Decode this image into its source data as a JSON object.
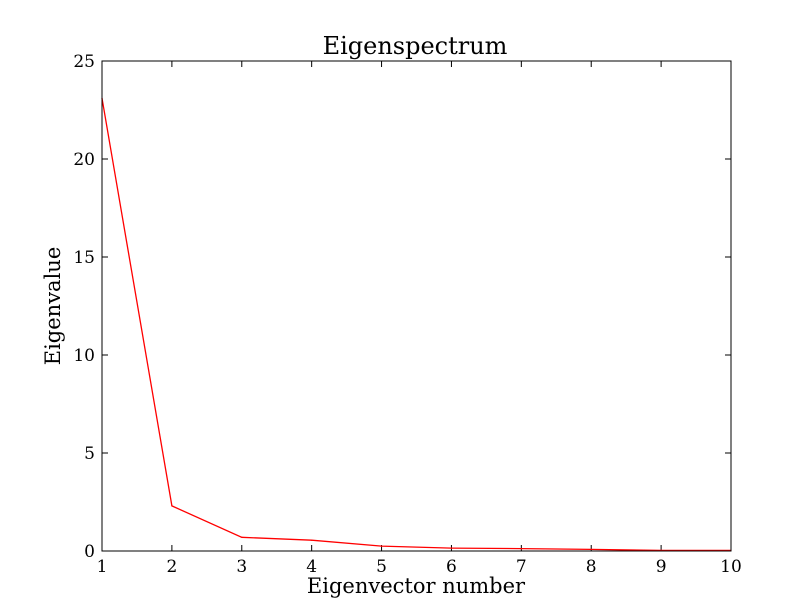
{
  "chart_data": {
    "type": "line",
    "title": "Eigenspectrum",
    "xlabel": "Eigenvector number",
    "ylabel": "Eigenvalue",
    "xlim": [
      1,
      10
    ],
    "ylim": [
      0,
      25
    ],
    "xticks": [
      1,
      2,
      3,
      4,
      5,
      6,
      7,
      8,
      9,
      10
    ],
    "yticks": [
      0,
      5,
      10,
      15,
      20,
      25
    ],
    "grid": false,
    "legend": "none",
    "series": [
      {
        "color": "#ff0000",
        "x": [
          1,
          2,
          3,
          4,
          5,
          6,
          7,
          8,
          9,
          10
        ],
        "values": [
          23.1,
          2.3,
          0.7,
          0.55,
          0.25,
          0.15,
          0.12,
          0.08,
          0.03,
          0.03
        ]
      }
    ]
  }
}
